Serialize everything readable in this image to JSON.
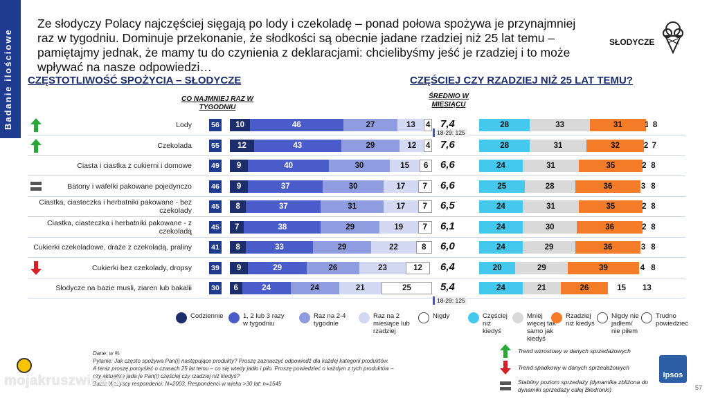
{
  "side_tab": "Badanie ilościowe",
  "header_text": "Ze słodyczy Polacy najczęściej sięgają po lody i czekoladę – ponad połowa spożywa je przynajmniej raz w tygodniu. Dominuje przekonanie, że słodkości są obecnie jadane rzadziej niż 25 lat temu – pamiętajmy jednak, że mamy tu do czynienia z deklaracjami: chcielibyśmy jeść je rzadziej i to może wpływać na nasze odpowiedzi…",
  "category_label": "SŁODYCZE",
  "left_title": "CZĘSTOTLIWOŚĆ SPOŻYCIA – SŁODYCZE",
  "right_title": "CZĘŚCIEJ CZY RZADZIEJ NIŻ 25 LAT TEMU?",
  "col_weekly": "CO NAJMNIEJ RAZ W TYGODNIU",
  "col_avg": "ŚREDNIO W MIESIĄCU",
  "callouts": [
    "18-29: 125",
    "18-29: 125"
  ],
  "colors": {
    "codziennie": "#1b2d6b",
    "weekly": "#4a5cc9",
    "raz24": "#8f9de0",
    "raz2": "#d3d8f3",
    "nigdy": "#ffffff",
    "czesciej": "#44c8ee",
    "tak_samo": "#d9d9d9",
    "rzadziej": "#f47b27",
    "nie_jadlem": "#ffffff",
    "trudno": "#ffffff",
    "trend_up": "#27a839",
    "trend_down": "#d61f26",
    "trend_stable": "#555555"
  },
  "rows": [
    {
      "label": "Lody",
      "trend": "up",
      "weekly_total": "56",
      "freq": [
        10,
        46,
        27,
        13,
        4
      ],
      "avg": "7,4",
      "comp": [
        28,
        33,
        31,
        1,
        8
      ]
    },
    {
      "label": "Czekolada",
      "trend": "up",
      "weekly_total": "55",
      "freq": [
        12,
        43,
        29,
        12,
        4
      ],
      "avg": "7,6",
      "comp": [
        28,
        31,
        32,
        2,
        7
      ]
    },
    {
      "label": "Ciasta i ciastka z cukierni i domowe",
      "trend": "",
      "weekly_total": "49",
      "freq": [
        9,
        40,
        30,
        15,
        6
      ],
      "avg": "6,6",
      "comp": [
        24,
        31,
        35,
        2,
        8
      ]
    },
    {
      "label": "Batony i wafelki pakowane pojedynczo",
      "trend": "stable",
      "weekly_total": "46",
      "freq": [
        9,
        37,
        30,
        17,
        7
      ],
      "avg": "6,6",
      "comp": [
        25,
        28,
        36,
        3,
        8
      ]
    },
    {
      "label": "Ciastka, ciasteczka i herbatniki pakowane - bez czekolady",
      "trend": "",
      "weekly_total": "45",
      "freq": [
        8,
        37,
        31,
        17,
        7
      ],
      "avg": "6,5",
      "comp": [
        24,
        31,
        35,
        2,
        8
      ]
    },
    {
      "label": "Ciastka, ciasteczka i herbatniki pakowane - z czekoladą",
      "trend": "",
      "weekly_total": "45",
      "freq": [
        7,
        38,
        29,
        19,
        7
      ],
      "avg": "6,1",
      "comp": [
        24,
        30,
        36,
        2,
        8
      ]
    },
    {
      "label": "Cukierki czekoladowe, draże z czekoladą, praliny",
      "trend": "",
      "weekly_total": "41",
      "freq": [
        8,
        33,
        29,
        22,
        8
      ],
      "avg": "6,0",
      "comp": [
        24,
        29,
        36,
        3,
        8
      ]
    },
    {
      "label": "Cukierki bez czekolady, dropsy",
      "trend": "down",
      "weekly_total": "39",
      "freq": [
        9,
        29,
        26,
        23,
        12
      ],
      "avg": "6,4",
      "comp": [
        20,
        29,
        39,
        4,
        8
      ]
    },
    {
      "label": "Słodycze na bazie musli, ziaren lub bakalii",
      "trend": "",
      "weekly_total": "30",
      "freq": [
        6,
        24,
        24,
        21,
        25
      ],
      "avg": "5,4",
      "comp": [
        24,
        21,
        26,
        15,
        13
      ]
    }
  ],
  "legend_left": [
    "Codziennie",
    "1, 2 lub 3 razy w tygodniu",
    "Raz na 2-4 tygodnie",
    "Raz na 2 miesiące lub rzadziej",
    "Nigdy"
  ],
  "legend_right": [
    "Częściej niż kiedyś",
    "Mniej więcej tak samo jak kiedyś",
    "Rzadziej niż kiedyś",
    "Nigdy nie jadłem/ nie piłem",
    "Trudno powiedzieć"
  ],
  "trend_legend": [
    "Trend wzrostowy w danych sprzedażowych",
    "Trend spadkowy w danych sprzedażowych",
    "Stabilny poziom sprzedaży (dynamika zbliżona do dynamiki sprzedaży całej Biedronki)"
  ],
  "footnote": [
    "Dane: w %",
    "Pytanie: Jak często spożywa Pan(i) następujące produkty? Proszę zaznaczyć odpowiedź dla każdej kategorii produktów.",
    "A teraz proszę pomyśleć o czasach 25 lat temu – co się wtedy jadło i piło. Proszę powiedzieć o każdym z tych produktów –",
    "czy aktualnie jada je Pan(i) częściej czy rzadziej niż kiedyś?",
    "Baza: Wszyscy respondenci: N=2003, Respondenci w wieku >30 lat: n=1545"
  ],
  "page_number": "57",
  "brand": "Ipsos",
  "watermark": "mojakruszwica.pl"
}
